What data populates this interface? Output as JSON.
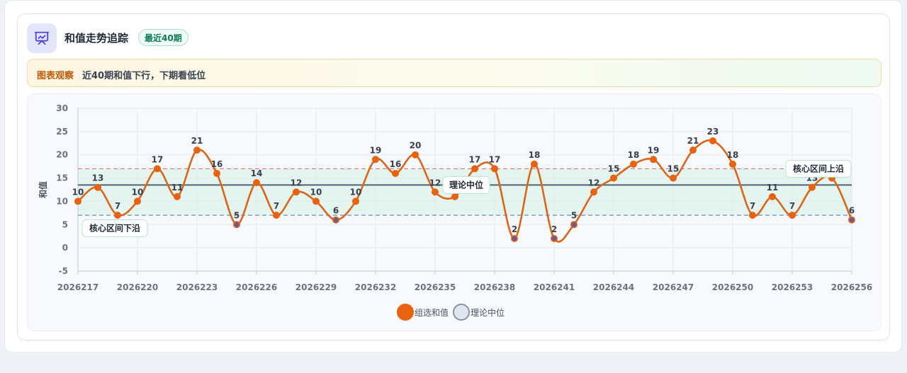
{
  "header": {
    "title": "和值走势追踪",
    "badge": "最近40期",
    "icon": "chart-presentation-icon"
  },
  "observation": {
    "label": "图表观察",
    "text": "近40期和值下行，下期看低位"
  },
  "legend": [
    {
      "label": "组选和值",
      "color": "#e8620f"
    },
    {
      "label": "理论中位",
      "color": "#e2e6ee"
    }
  ],
  "colors": {
    "line": "#d9661a",
    "point_high": "#e8620f",
    "point_low": "#6b5b95",
    "median_line": "#546276",
    "upper_band": "#e07a7a",
    "lower_band": "#6b8cc0",
    "band_fill": "#dff3ea"
  },
  "chart_data": {
    "type": "line",
    "ylabel": "和值",
    "xlabel": "",
    "ylim": [
      -5,
      30
    ],
    "yticks": [
      -5,
      0,
      5,
      10,
      15,
      20,
      25,
      30
    ],
    "grid": true,
    "legend_position": "bottom-center",
    "x": [
      "2026217",
      "2026218",
      "2026219",
      "2026220",
      "2026221",
      "2026222",
      "2026223",
      "2026224",
      "2026225",
      "2026226",
      "2026227",
      "2026228",
      "2026229",
      "2026230",
      "2026231",
      "2026232",
      "2026233",
      "2026234",
      "2026235",
      "2026236",
      "2026237",
      "2026238",
      "2026239",
      "2026240",
      "2026241",
      "2026242",
      "2026243",
      "2026244",
      "2026245",
      "2026246",
      "2026247",
      "2026248",
      "2026249",
      "2026250",
      "2026251",
      "2026252",
      "2026253",
      "2026254",
      "2026255",
      "2026256"
    ],
    "x_tick_labels": [
      "2026217",
      "2026220",
      "2026223",
      "2026226",
      "2026229",
      "2026232",
      "2026235",
      "2026238",
      "2026241",
      "2026244",
      "2026247",
      "2026250",
      "2026253",
      "2026256"
    ],
    "series": [
      {
        "name": "组选和值",
        "values": [
          10,
          13,
          7,
          10,
          17,
          11,
          21,
          16,
          5,
          14,
          7,
          12,
          10,
          6,
          10,
          19,
          16,
          20,
          12,
          11,
          17,
          17,
          2,
          18,
          2,
          5,
          12,
          15,
          18,
          19,
          15,
          21,
          23,
          18,
          7,
          11,
          7,
          13,
          15,
          6
        ]
      }
    ],
    "median": {
      "name": "理论中位",
      "value": 13.5
    },
    "band": {
      "upper": 17,
      "lower": 7
    },
    "annotations": [
      {
        "text": "核心区间下沿",
        "y": 7
      },
      {
        "text": "理论中位",
        "y": 13.5
      },
      {
        "text": "核心区间上沿",
        "y": 17
      }
    ]
  }
}
